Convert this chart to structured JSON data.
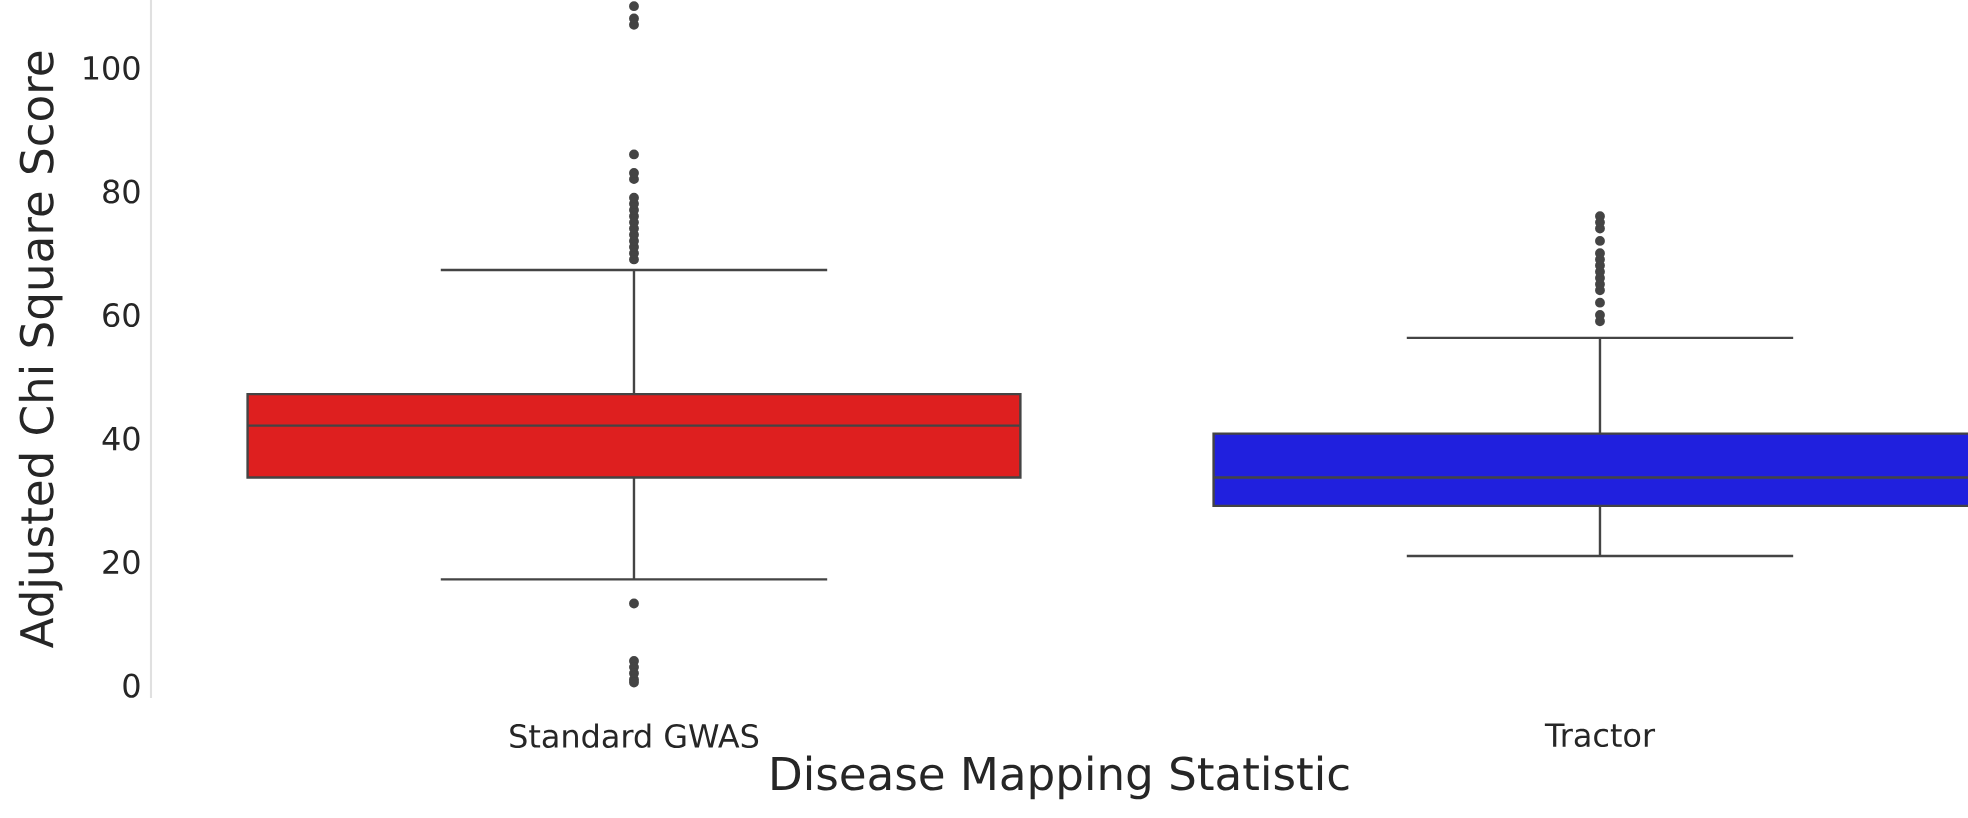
{
  "chart_data": {
    "type": "box",
    "xlabel": "Disease Mapping Statistic",
    "ylabel": "Adjusted Chi Square Score",
    "categories": [
      "Standard GWAS",
      "Tractor"
    ],
    "colors": [
      "#de1f1f",
      "#2020de"
    ],
    "ylim": [
      -2,
      111
    ],
    "yticks": [
      0,
      20,
      40,
      60,
      80,
      100
    ],
    "boxes": [
      {
        "low": 17.2,
        "q1": 33.7,
        "median": 42.1,
        "q3": 47.2,
        "high": 67.3,
        "outliers": [
          13.3,
          4,
          3,
          2,
          1,
          0.5,
          69,
          70,
          71,
          72,
          73,
          74,
          75,
          76,
          77,
          78,
          79,
          82,
          83,
          86,
          107,
          108,
          110
        ]
      },
      {
        "low": 21,
        "q1": 29.1,
        "median": 33.7,
        "q3": 40.8,
        "high": 56.3,
        "outliers": [
          59,
          60,
          62,
          64,
          65,
          66,
          67,
          68,
          69,
          70,
          72,
          74,
          75,
          76
        ]
      }
    ]
  }
}
